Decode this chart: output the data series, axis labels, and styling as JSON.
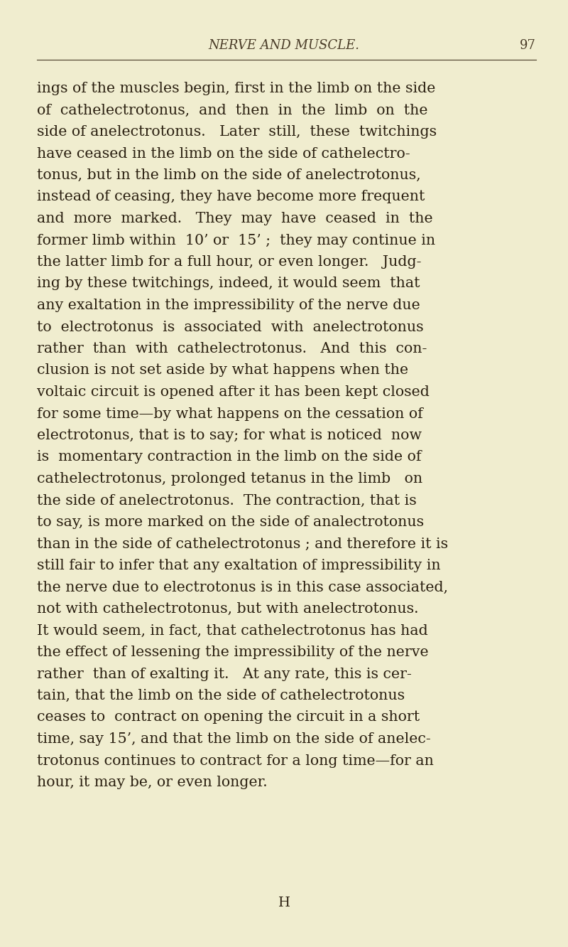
{
  "bg_color": "#f0edcf",
  "header_title": "NERVE AND MUSCLE.",
  "header_page": "97",
  "header_font_size": 13,
  "header_font_color": "#4a3c28",
  "body_font_size": 14.8,
  "body_font_color": "#2a1f10",
  "footer_letter": "H",
  "footer_font_size": 14,
  "lines": [
    "ings of the muscles begin, first in the limb on the side",
    "of  cathelectrotonus,  and  then  in  the  limb  on  the",
    "side of anelectrotonus.   Later  still,  these  twitchings",
    "have ceased in the limb on the side of cathelectro-",
    "tonus, but in the limb on the side of anelectrotonus,",
    "instead of ceasing, they have become more frequent",
    "and  more  marked.   They  may  have  ceased  in  the",
    "former limb within  10’ or  15’ ;  they may continue in",
    "the latter limb for a full hour, or even longer.   Judg-",
    "ing by these twitchings, indeed, it would seem  that",
    "any exaltation in the impressibility of the nerve due",
    "to  electrotonus  is  associated  with  anelectrotonus",
    "rather  than  with  cathelectrotonus.   And  this  con-",
    "clusion is not set aside by what happens when the",
    "voltaic circuit is opened after it has been kept closed",
    "for some time—by what happens on the cessation of",
    "electrotonus, that is to say; for what is noticed  now",
    "is  momentary contraction in the limb on the side of",
    "cathelectrotonus, prolonged tetanus in the limb   on",
    "the side of anelectrotonus.  The contraction, that is",
    "to say, is more marked on the side of analectrotonus",
    "than in the side of cathelectrotonus ; and therefore it is",
    "still fair to infer that any exaltation of impressibility in",
    "the nerve due to electrotonus is in this case associated,",
    "not with cathelectrotonus, but with anelectrotonus.",
    "It would seem, in fact, that cathelectrotonus has had",
    "the effect of lessening the impressibility of the nerve",
    "rather  than of exalting it.   At any rate, this is cer-",
    "tain, that the limb on the side of cathelectrotonus",
    "ceases to  contract on opening the circuit in a short",
    "time, say 15’, and that the limb on the side of anelec-",
    "trotonus continues to contract for a long time—for an",
    "hour, it may be, or even longer."
  ]
}
